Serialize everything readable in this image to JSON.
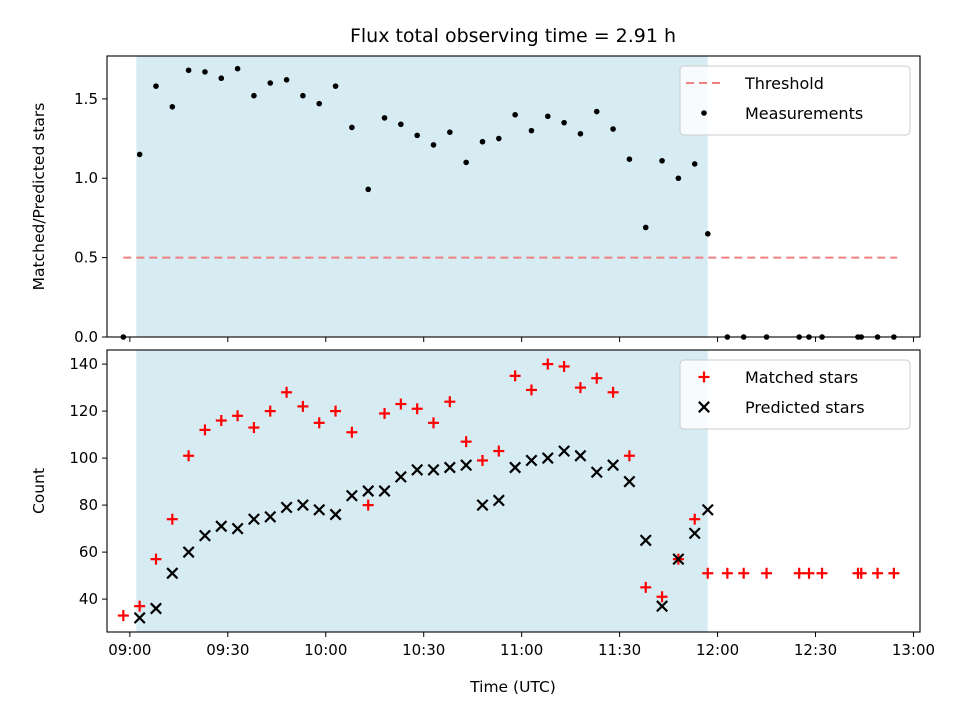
{
  "chart_data": {
    "title": "Flux total observing time = 2.91 h",
    "xlabel": "Time (UTC)",
    "x_ticks": [
      "09:00",
      "09:30",
      "10:00",
      "10:30",
      "11:00",
      "11:30",
      "12:00",
      "12:30",
      "13:00"
    ],
    "x_range": [
      "08:53",
      "13:02"
    ],
    "shaded_interval": [
      "09:02",
      "11:57"
    ],
    "colors": {
      "threshold": "#f08080",
      "measurements": "#000000",
      "matched": "#ff0000",
      "predicted": "#000000",
      "shade": "#add8e6"
    },
    "panels": [
      {
        "type": "scatter",
        "ylabel": "Matched/Predicted stars",
        "ylim": [
          0,
          1.77
        ],
        "y_ticks": [
          "0.0",
          "0.5",
          "1.0",
          "1.5"
        ],
        "legend_position": "top-right",
        "series": [
          {
            "name": "Threshold",
            "kind": "dashed-line",
            "x": [
              "08:58",
              "12:55"
            ],
            "y": [
              0.5,
              0.5
            ]
          },
          {
            "name": "Measurements",
            "kind": "dot",
            "points": [
              [
                "08:58",
                0.0
              ],
              [
                "09:03",
                1.15
              ],
              [
                "09:08",
                1.58
              ],
              [
                "09:13",
                1.45
              ],
              [
                "09:18",
                1.68
              ],
              [
                "09:23",
                1.67
              ],
              [
                "09:28",
                1.63
              ],
              [
                "09:33",
                1.69
              ],
              [
                "09:38",
                1.52
              ],
              [
                "09:43",
                1.6
              ],
              [
                "09:48",
                1.62
              ],
              [
                "09:53",
                1.52
              ],
              [
                "09:58",
                1.47
              ],
              [
                "10:03",
                1.58
              ],
              [
                "10:08",
                1.32
              ],
              [
                "10:13",
                0.93
              ],
              [
                "10:18",
                1.38
              ],
              [
                "10:23",
                1.34
              ],
              [
                "10:28",
                1.27
              ],
              [
                "10:33",
                1.21
              ],
              [
                "10:38",
                1.29
              ],
              [
                "10:43",
                1.1
              ],
              [
                "10:48",
                1.23
              ],
              [
                "10:53",
                1.25
              ],
              [
                "10:58",
                1.4
              ],
              [
                "11:03",
                1.3
              ],
              [
                "11:08",
                1.39
              ],
              [
                "11:13",
                1.35
              ],
              [
                "11:18",
                1.28
              ],
              [
                "11:23",
                1.42
              ],
              [
                "11:28",
                1.31
              ],
              [
                "11:33",
                1.12
              ],
              [
                "11:38",
                0.69
              ],
              [
                "11:43",
                1.11
              ],
              [
                "11:48",
                1.0
              ],
              [
                "11:53",
                1.09
              ],
              [
                "11:57",
                0.65
              ],
              [
                "12:03",
                0.0
              ],
              [
                "12:08",
                0.0
              ],
              [
                "12:15",
                0.0
              ],
              [
                "12:25",
                0.0
              ],
              [
                "12:28",
                0.0
              ],
              [
                "12:32",
                0.0
              ],
              [
                "12:43",
                0.0
              ],
              [
                "12:44",
                0.0
              ],
              [
                "12:49",
                0.0
              ],
              [
                "12:54",
                0.0
              ]
            ]
          }
        ]
      },
      {
        "type": "scatter",
        "ylabel": "Count",
        "ylim": [
          26,
          146
        ],
        "y_ticks": [
          "40",
          "60",
          "80",
          "100",
          "120",
          "140"
        ],
        "legend_position": "top-right",
        "series": [
          {
            "name": "Matched stars",
            "kind": "plus",
            "points": [
              [
                "08:58",
                33
              ],
              [
                "09:03",
                37
              ],
              [
                "09:08",
                57
              ],
              [
                "09:13",
                74
              ],
              [
                "09:18",
                101
              ],
              [
                "09:23",
                112
              ],
              [
                "09:28",
                116
              ],
              [
                "09:33",
                118
              ],
              [
                "09:38",
                113
              ],
              [
                "09:43",
                120
              ],
              [
                "09:48",
                128
              ],
              [
                "09:53",
                122
              ],
              [
                "09:58",
                115
              ],
              [
                "10:03",
                120
              ],
              [
                "10:08",
                111
              ],
              [
                "10:13",
                80
              ],
              [
                "10:18",
                119
              ],
              [
                "10:23",
                123
              ],
              [
                "10:28",
                121
              ],
              [
                "10:33",
                115
              ],
              [
                "10:38",
                124
              ],
              [
                "10:43",
                107
              ],
              [
                "10:48",
                99
              ],
              [
                "10:53",
                103
              ],
              [
                "10:58",
                135
              ],
              [
                "11:03",
                129
              ],
              [
                "11:08",
                140
              ],
              [
                "11:13",
                139
              ],
              [
                "11:18",
                130
              ],
              [
                "11:23",
                134
              ],
              [
                "11:28",
                128
              ],
              [
                "11:33",
                101
              ],
              [
                "11:38",
                45
              ],
              [
                "11:43",
                41
              ],
              [
                "11:48",
                57
              ],
              [
                "11:53",
                74
              ],
              [
                "11:57",
                51
              ],
              [
                "12:03",
                51
              ],
              [
                "12:08",
                51
              ],
              [
                "12:15",
                51
              ],
              [
                "12:25",
                51
              ],
              [
                "12:28",
                51
              ],
              [
                "12:32",
                51
              ],
              [
                "12:43",
                51
              ],
              [
                "12:44",
                51
              ],
              [
                "12:49",
                51
              ],
              [
                "12:54",
                51
              ]
            ]
          },
          {
            "name": "Predicted stars",
            "kind": "cross",
            "points": [
              [
                "09:03",
                32
              ],
              [
                "09:08",
                36
              ],
              [
                "09:13",
                51
              ],
              [
                "09:18",
                60
              ],
              [
                "09:23",
                67
              ],
              [
                "09:28",
                71
              ],
              [
                "09:33",
                70
              ],
              [
                "09:38",
                74
              ],
              [
                "09:43",
                75
              ],
              [
                "09:48",
                79
              ],
              [
                "09:53",
                80
              ],
              [
                "09:58",
                78
              ],
              [
                "10:03",
                76
              ],
              [
                "10:08",
                84
              ],
              [
                "10:13",
                86
              ],
              [
                "10:18",
                86
              ],
              [
                "10:23",
                92
              ],
              [
                "10:28",
                95
              ],
              [
                "10:33",
                95
              ],
              [
                "10:38",
                96
              ],
              [
                "10:43",
                97
              ],
              [
                "10:48",
                80
              ],
              [
                "10:53",
                82
              ],
              [
                "10:58",
                96
              ],
              [
                "11:03",
                99
              ],
              [
                "11:08",
                100
              ],
              [
                "11:13",
                103
              ],
              [
                "11:18",
                101
              ],
              [
                "11:23",
                94
              ],
              [
                "11:28",
                97
              ],
              [
                "11:33",
                90
              ],
              [
                "11:38",
                65
              ],
              [
                "11:43",
                37
              ],
              [
                "11:48",
                57
              ],
              [
                "11:53",
                68
              ],
              [
                "11:57",
                78
              ]
            ]
          }
        ]
      }
    ]
  }
}
